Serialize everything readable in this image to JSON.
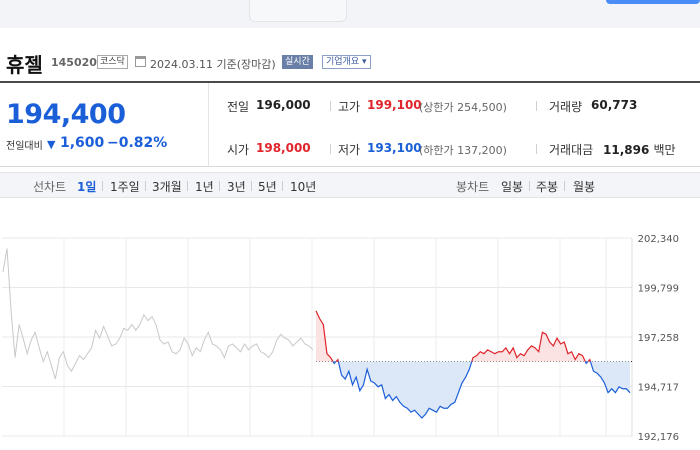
{
  "stock": {
    "name": "휴젤",
    "code": "145020",
    "market": "코스닥",
    "basis_date": "2024.03.11 기준(장마감)",
    "realtime_label": "실시간",
    "company_label": "기업개요 ▾"
  },
  "quote": {
    "price": "194,400",
    "change_label": "전일대비",
    "change_icon": "▼",
    "change_amount": "1,600",
    "change_rate": "−0.82%",
    "prev_close_label": "전일",
    "prev_close": "196,000",
    "high_label": "고가",
    "high": "199,100",
    "upper_limit": "(상한가 254,500)",
    "volume_label": "거래량",
    "volume": "60,773",
    "open_label": "시가",
    "open": "198,000",
    "low_label": "저가",
    "low": "193,100",
    "lower_limit": "(하한가 137,200)",
    "trade_value_label": "거래대금",
    "trade_value": "11,896",
    "trade_value_unit": "백만"
  },
  "toolbar": {
    "line_chart_label": "선차트",
    "periods": [
      "1일",
      "1주일",
      "3개월",
      "1년",
      "3년",
      "5년",
      "10년"
    ],
    "candle_chart_label": "봉차트",
    "candle_periods": [
      "일봉",
      "주봉",
      "월봉"
    ]
  },
  "colors": {
    "up": "#e0242b",
    "down": "#1a5ed8",
    "fill_down": "#dce8f8",
    "fill_up": "#fbe3e3",
    "prev_day": "#c8c8c8"
  },
  "chart_data": {
    "type": "line",
    "title": "",
    "xlabel": "",
    "ylabel": "",
    "y_ticks": [
      "202,340",
      "199,799",
      "197,258",
      "194,717",
      "192,176"
    ],
    "ylim": [
      192176,
      202340
    ],
    "reference_price": 196000,
    "series": [
      {
        "values": [
          200600,
          201800,
          198600,
          196200,
          197900,
          197200,
          196400,
          197100,
          197500,
          196700,
          196000,
          196500,
          195800,
          195100,
          196200,
          196500,
          195800,
          195500,
          195900,
          196300,
          196100,
          196400,
          196700,
          197600,
          197200,
          197800,
          197300,
          196800,
          196900,
          197200,
          197700,
          197600,
          197900,
          197600,
          197900,
          198400,
          198100,
          198300,
          197900,
          197100,
          196900,
          197000,
          196500,
          196400,
          196600,
          197200,
          196900,
          196300,
          196700,
          196500,
          197100,
          197500,
          196900,
          196800,
          196600,
          196200,
          196800,
          196900,
          196700,
          196500,
          196900,
          196600,
          196800,
          196900,
          196500,
          196400,
          196200,
          196500,
          197100,
          197400,
          197200,
          197100,
          196800,
          197000,
          197200,
          196900,
          196800,
          196600
        ]
      },
      {
        "values": [
          198600,
          198200,
          197900,
          196400,
          196200,
          195900,
          196100,
          195300,
          195100,
          195500,
          194800,
          195200,
          194500,
          194800,
          195600,
          195000,
          194900,
          194700,
          194800,
          194100,
          194300,
          194000,
          194200,
          193900,
          193700,
          193600,
          193400,
          193500,
          193300,
          193100,
          193300,
          193600,
          193500,
          193400,
          193700,
          193600,
          193600,
          193800,
          193900,
          194400,
          194900,
          195200,
          195600,
          196200,
          196300,
          196500,
          196400,
          196600,
          196500,
          196400,
          196500,
          196500,
          196700,
          196400,
          196700,
          196200,
          196400,
          196300,
          196600,
          196800,
          196700,
          196500,
          197500,
          197400,
          197000,
          196800,
          197200,
          196900,
          197000,
          196400,
          196500,
          196100,
          196400,
          196300,
          195900,
          196100,
          195500,
          195400,
          195200,
          194900,
          194400,
          194600,
          194400,
          194700,
          194600,
          194600,
          194400
        ]
      }
    ],
    "grid": true
  }
}
